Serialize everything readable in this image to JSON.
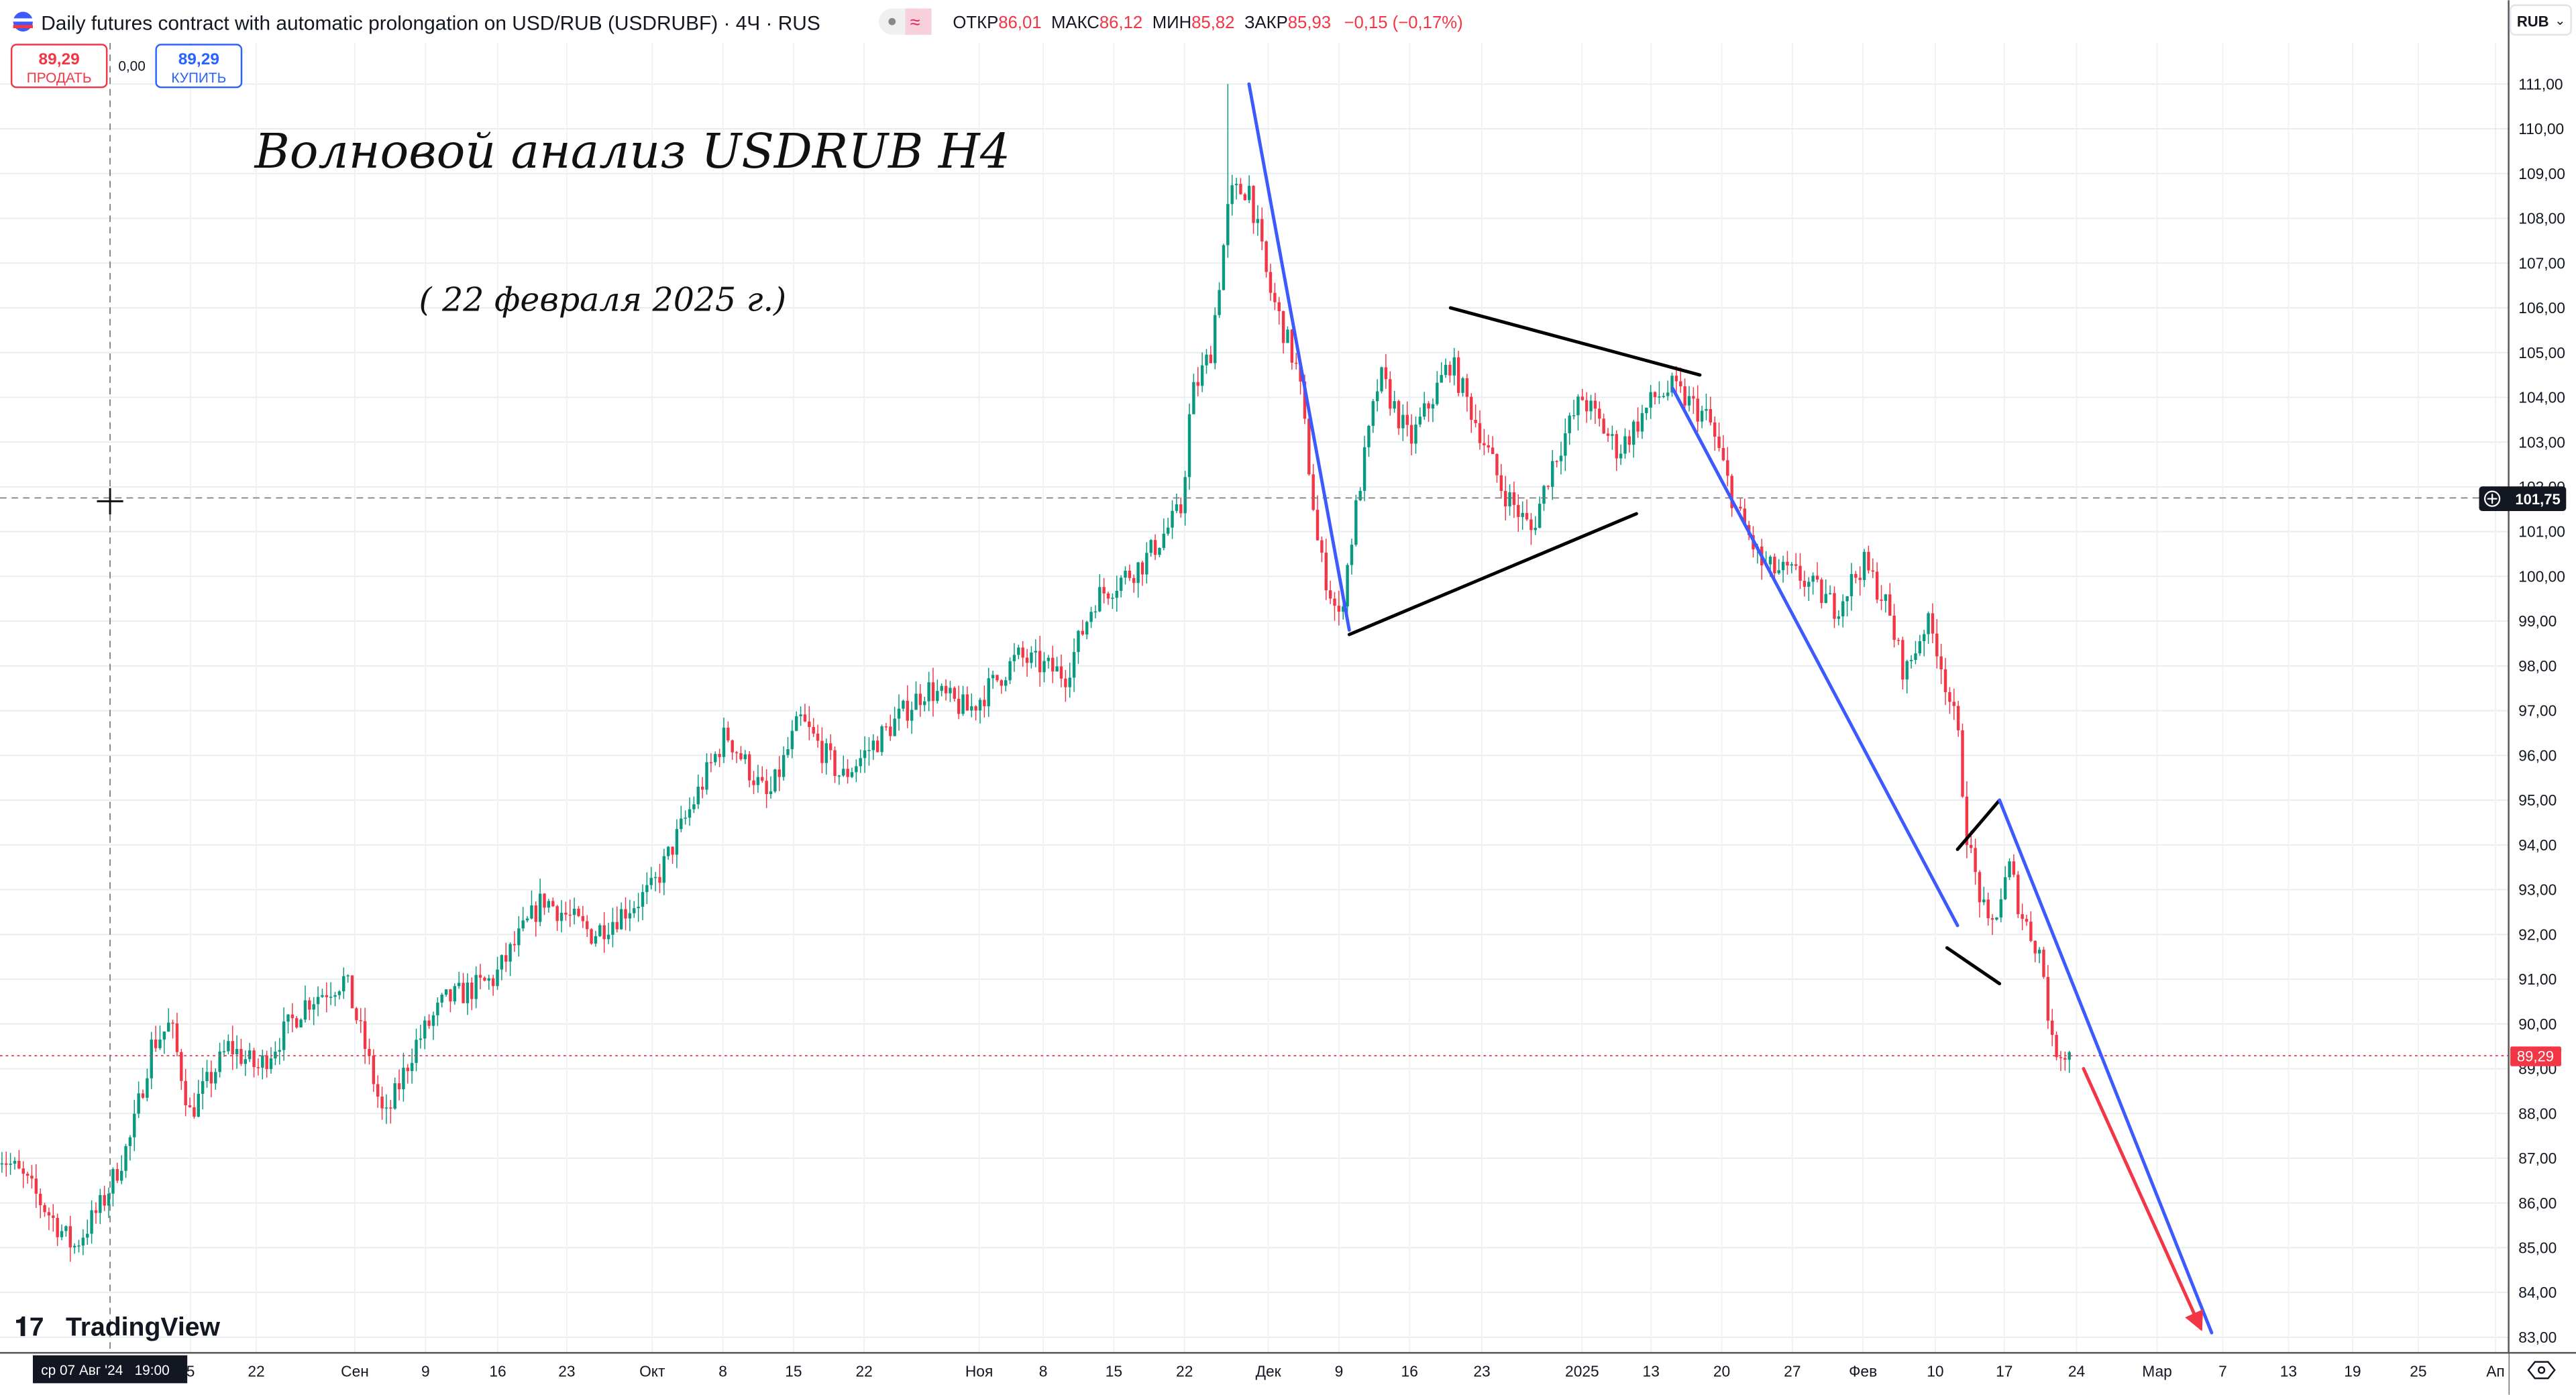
{
  "header": {
    "title": "Daily futures contract with automatic prolongation on USD/RUB (USDRUBF) · 4Ч · RUS",
    "ohlc": {
      "open_label": "ОТКР",
      "open": "86,01",
      "high_label": "МАКС",
      "high": "86,12",
      "low_label": "МИН",
      "low": "85,82",
      "close_label": "ЗАКР",
      "close": "85,93",
      "change": "−0,15 (−0,17%)"
    },
    "sell": {
      "price": "89,29",
      "label": "ПРОДАТЬ"
    },
    "spread": "0,00",
    "buy": {
      "price": "89,29",
      "label": "КУПИТЬ"
    },
    "currency": "RUB"
  },
  "colors": {
    "up": "#089981",
    "down": "#f23645",
    "trend_blue": "#3d5afe",
    "arrow_red": "#f23645",
    "line_black": "#000000"
  },
  "annotations": {
    "title": "Волновой анализ USDRUB H4",
    "date": "( 22 февраля 2025 г.)"
  },
  "crosshair": {
    "price": "101,75",
    "time": "ср 07 Авг '24   19:00"
  },
  "last_price": "89,29",
  "logo": "TradingView",
  "chart_data": {
    "type": "candlestick",
    "symbol": "USDRUBF",
    "interval": "4H",
    "ylim": [
      82.6,
      112.0
    ],
    "y_ticks": [
      "111,00",
      "110,00",
      "109,00",
      "108,00",
      "107,00",
      "106,00",
      "105,00",
      "104,00",
      "103,00",
      "102,00",
      "101,00",
      "100,00",
      "99,00",
      "98,00",
      "97,00",
      "96,00",
      "95,00",
      "94,00",
      "93,00",
      "92,00",
      "91,00",
      "90,00",
      "89,00",
      "88,00",
      "87,00",
      "86,00",
      "85,00",
      "84,00",
      "83,00"
    ],
    "x_ticks": [
      "5",
      "22",
      "Сен",
      "9",
      "16",
      "23",
      "Окт",
      "8",
      "15",
      "22",
      "Ноя",
      "8",
      "15",
      "22",
      "Дек",
      "9",
      "16",
      "23",
      "2025",
      "13",
      "20",
      "27",
      "Фев",
      "10",
      "17",
      "24",
      "Мар",
      "7",
      "13",
      "19",
      "25",
      "Ап"
    ],
    "grid": true,
    "price_path": [
      [
        "2024-07-26",
        87.2
      ],
      [
        "2024-07-29",
        86.5
      ],
      [
        "2024-08-03",
        85.0
      ],
      [
        "2024-08-06",
        86.0
      ],
      [
        "2024-08-09",
        87.5
      ],
      [
        "2024-08-11",
        89.5
      ],
      [
        "2024-08-13",
        90.0
      ],
      [
        "2024-08-15",
        88.0
      ],
      [
        "2024-08-19",
        89.5
      ],
      [
        "2024-08-22",
        89.0
      ],
      [
        "2024-08-27",
        90.5
      ],
      [
        "2024-08-31",
        91.0
      ],
      [
        "2024-09-02",
        89.5
      ],
      [
        "2024-09-04",
        87.8
      ],
      [
        "2024-09-07",
        89.5
      ],
      [
        "2024-09-10",
        90.5
      ],
      [
        "2024-09-15",
        91.0
      ],
      [
        "2024-09-20",
        92.8
      ],
      [
        "2024-09-25",
        92.0
      ],
      [
        "2024-10-01",
        93.0
      ],
      [
        "2024-10-05",
        95.0
      ],
      [
        "2024-10-08",
        96.5
      ],
      [
        "2024-10-12",
        95.0
      ],
      [
        "2024-10-15",
        96.8
      ],
      [
        "2024-10-19",
        95.5
      ],
      [
        "2024-10-23",
        96.5
      ],
      [
        "2024-10-27",
        97.5
      ],
      [
        "2024-10-31",
        97.0
      ],
      [
        "2024-11-05",
        98.2
      ],
      [
        "2024-11-10",
        97.8
      ],
      [
        "2024-11-13",
        99.5
      ],
      [
        "2024-11-18",
        100.3
      ],
      [
        "2024-11-22",
        101.5
      ],
      [
        "2024-11-23",
        104.0
      ],
      [
        "2024-11-25",
        105.0
      ],
      [
        "2024-11-27",
        108.5
      ],
      [
        "2024-11-29",
        108.7
      ],
      [
        "2024-12-01",
        106.5
      ],
      [
        "2024-12-04",
        104.5
      ],
      [
        "2024-12-06",
        100.5
      ],
      [
        "2024-12-08",
        99.0
      ],
      [
        "2024-12-10",
        102.0
      ],
      [
        "2024-12-12",
        104.5
      ],
      [
        "2024-12-15",
        103.0
      ],
      [
        "2024-12-19",
        104.8
      ],
      [
        "2024-12-22",
        103.2
      ],
      [
        "2024-12-24",
        102.0
      ],
      [
        "2024-12-27",
        101.0
      ],
      [
        "2024-12-29",
        102.5
      ],
      [
        "2025-01-01",
        104.0
      ],
      [
        "2025-01-05",
        102.8
      ],
      [
        "2025-01-09",
        104.0
      ],
      [
        "2025-01-11",
        104.2
      ],
      [
        "2025-01-15",
        103.5
      ],
      [
        "2025-01-18",
        101.5
      ],
      [
        "2025-01-21",
        100.2
      ],
      [
        "2025-01-25",
        100.0
      ],
      [
        "2025-01-29",
        99.3
      ],
      [
        "2025-02-01",
        100.3
      ],
      [
        "2025-02-03",
        99.5
      ],
      [
        "2025-02-05",
        97.8
      ],
      [
        "2025-02-07",
        99.0
      ],
      [
        "2025-02-08",
        98.5
      ],
      [
        "2025-02-10",
        96.5
      ],
      [
        "2025-02-11",
        94.0
      ],
      [
        "2025-02-13",
        92.0
      ],
      [
        "2025-02-15",
        93.5
      ],
      [
        "2025-02-16",
        92.5
      ],
      [
        "2025-02-18",
        91.5
      ],
      [
        "2025-02-19",
        89.5
      ],
      [
        "2025-02-21",
        89.3
      ]
    ],
    "peak_high": 111.0,
    "drawings": [
      {
        "kind": "trendline",
        "color": "trend_blue",
        "from": [
          "2024-11-29",
          111.0
        ],
        "to": [
          "2024-12-09",
          98.8
        ]
      },
      {
        "kind": "trendline",
        "color": "line_black",
        "from": [
          "2024-12-19",
          106.0
        ],
        "to": [
          "2025-01-14",
          104.5
        ]
      },
      {
        "kind": "trendline",
        "color": "line_black",
        "from": [
          "2024-12-09",
          98.7
        ],
        "to": [
          "2025-01-07",
          101.4
        ]
      },
      {
        "kind": "trendline",
        "color": "trend_blue",
        "from": [
          "2025-01-11",
          104.2
        ],
        "to": [
          "2025-02-10",
          92.2
        ]
      },
      {
        "kind": "trendline",
        "color": "line_black",
        "from": [
          "2025-02-10",
          93.9
        ],
        "to": [
          "2025-02-14",
          95.0
        ]
      },
      {
        "kind": "trendline",
        "color": "line_black",
        "from": [
          "2025-02-09",
          91.7
        ],
        "to": [
          "2025-02-14",
          90.9
        ]
      },
      {
        "kind": "trendline",
        "color": "trend_blue",
        "from": [
          "2025-02-14",
          95.0
        ],
        "to": [
          "2025-03-06",
          83.1
        ]
      },
      {
        "kind": "arrow",
        "color": "arrow_red",
        "from": [
          "2025-02-22",
          89.0
        ],
        "to": [
          "2025-03-05",
          83.2
        ]
      }
    ]
  }
}
